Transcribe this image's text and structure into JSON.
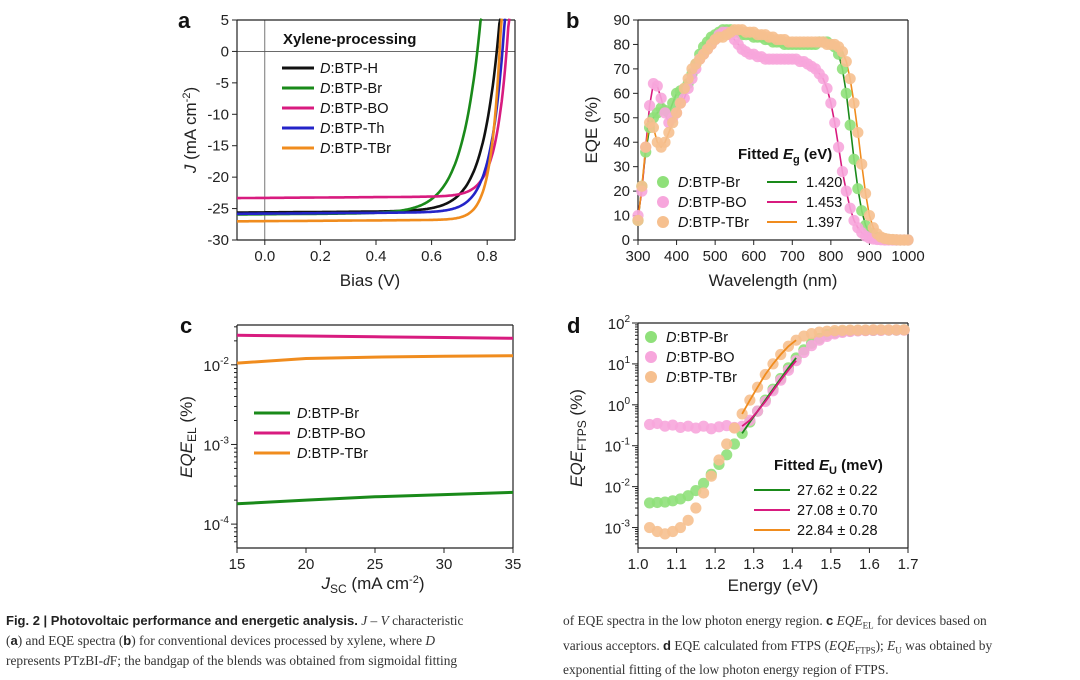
{
  "colors": {
    "black": "#111111",
    "green": "#1a8a1a",
    "magenta": "#d81b7f",
    "blue": "#2424c8",
    "orange": "#f08c1e",
    "green_marker": "#8fe07a",
    "magenta_marker": "#f7a6dc",
    "orange_marker": "#f6c08f"
  },
  "chart_data": [
    {
      "panel": "a",
      "type": "line",
      "title": "Xylene-processing",
      "xlabel": "Bias (V)",
      "ylabel": "J (mA cm-2)",
      "ylabel_parts": {
        "italic": "J",
        "rest": " (mA cm",
        "sup": "-2",
        "end": ")"
      },
      "xlim": [
        -0.1,
        0.9
      ],
      "ylim": [
        -30,
        5
      ],
      "xticks": [
        "0.0",
        "0.2",
        "0.4",
        "0.6",
        "0.8"
      ],
      "xtick_values": [
        0.0,
        0.2,
        0.4,
        0.6,
        0.8
      ],
      "yticks": [
        "5",
        "0",
        "-5",
        "-10",
        "-15",
        "-20",
        "-25",
        "-30"
      ],
      "ytick_values": [
        5,
        0,
        -5,
        -10,
        -15,
        -20,
        -25,
        -30
      ],
      "series": [
        {
          "name": "D:BTP-H",
          "prefix": "D",
          "suffix": ":BTP-H",
          "color": "#111111",
          "jsc": -25.6,
          "voc": 0.835,
          "n": 2.3
        },
        {
          "name": "D:BTP-Br",
          "prefix": "D",
          "suffix": ":BTP-Br",
          "color": "#1a8a1a",
          "jsc": -25.9,
          "voc": 0.765,
          "n": 2.6
        },
        {
          "name": "D:BTP-BO",
          "prefix": "D",
          "suffix": ":BTP-BO",
          "color": "#d81b7f",
          "jsc": -23.3,
          "voc": 0.87,
          "n": 1.6
        },
        {
          "name": "D:BTP-Th",
          "prefix": "D",
          "suffix": ":BTP-Th",
          "color": "#2424c8",
          "jsc": -25.8,
          "voc": 0.855,
          "n": 1.8
        },
        {
          "name": "D:BTP-TBr",
          "prefix": "D",
          "suffix": ":BTP-TBr",
          "color": "#f08c1e",
          "jsc": -27.0,
          "voc": 0.845,
          "n": 1.3
        }
      ]
    },
    {
      "panel": "b",
      "type": "scatter",
      "xlabel": "Wavelength (nm)",
      "ylabel": "EQE (%)",
      "xlim": [
        300,
        1000
      ],
      "ylim": [
        0,
        90
      ],
      "xticks": [
        "300",
        "400",
        "500",
        "600",
        "700",
        "800",
        "900",
        "1000"
      ],
      "xtick_values": [
        300,
        400,
        500,
        600,
        700,
        800,
        900,
        1000
      ],
      "yticks": [
        "0",
        "10",
        "20",
        "30",
        "40",
        "50",
        "60",
        "70",
        "80",
        "90"
      ],
      "ytick_values": [
        0,
        10,
        20,
        30,
        40,
        50,
        60,
        70,
        80,
        90
      ],
      "legend_title": "Fitted Eg (eV)",
      "legend_title_parts": {
        "pre": "Fitted ",
        "italic": "E",
        "sub": "g",
        "post": " (eV)"
      },
      "series": [
        {
          "name": "D:BTP-Br",
          "prefix": "D",
          "suffix": ":BTP-Br",
          "fit": "1.420",
          "color": "#1a8a1a",
          "marker": "#8fe07a",
          "x": [
            300,
            310,
            320,
            330,
            340,
            350,
            360,
            370,
            380,
            390,
            400,
            410,
            420,
            430,
            440,
            450,
            460,
            470,
            480,
            490,
            500,
            510,
            520,
            530,
            540,
            550,
            560,
            570,
            580,
            590,
            600,
            610,
            620,
            630,
            640,
            650,
            660,
            670,
            680,
            690,
            700,
            710,
            720,
            730,
            740,
            750,
            760,
            770,
            780,
            790,
            800,
            810,
            820,
            830,
            840,
            850,
            860,
            870,
            880,
            890,
            900,
            910,
            920,
            930,
            940,
            950,
            960,
            970,
            980,
            990,
            1000
          ],
          "y": [
            8,
            22,
            36,
            46,
            50,
            52,
            54,
            53,
            52,
            56,
            60,
            61,
            62,
            64,
            68,
            72,
            76,
            79,
            81,
            83,
            84,
            85,
            86,
            86,
            86,
            85,
            85,
            84,
            84,
            84,
            83,
            83,
            83,
            82,
            82,
            81,
            81,
            81,
            80,
            80,
            80,
            80,
            80,
            80,
            80,
            80,
            80,
            81,
            81,
            81,
            80,
            79,
            76,
            70,
            60,
            47,
            33,
            21,
            12,
            6,
            3,
            2,
            1,
            0.6,
            0.4,
            0.2,
            0.1,
            0,
            0,
            0,
            0
          ]
        },
        {
          "name": "D:BTP-BO",
          "prefix": "D",
          "suffix": ":BTP-BO",
          "fit": "1.453",
          "color": "#d81b7f",
          "marker": "#f7a6dc",
          "x": [
            300,
            310,
            320,
            330,
            340,
            350,
            360,
            370,
            380,
            390,
            400,
            410,
            420,
            430,
            440,
            450,
            460,
            470,
            480,
            490,
            500,
            510,
            520,
            530,
            540,
            550,
            560,
            570,
            580,
            590,
            600,
            610,
            620,
            630,
            640,
            650,
            660,
            670,
            680,
            690,
            700,
            710,
            720,
            730,
            740,
            750,
            760,
            770,
            780,
            790,
            800,
            810,
            820,
            830,
            840,
            850,
            860,
            870,
            880,
            890,
            900,
            910,
            920,
            930,
            940,
            950,
            960,
            970,
            980,
            990,
            1000
          ],
          "y": [
            10,
            20,
            38,
            55,
            64,
            63,
            58,
            52,
            48,
            50,
            52,
            56,
            58,
            62,
            66,
            70,
            74,
            76,
            78,
            80,
            82,
            84,
            85,
            85,
            84,
            82,
            80,
            78,
            77,
            76,
            76,
            75,
            75,
            74,
            74,
            74,
            74,
            74,
            74,
            74,
            74,
            74,
            73,
            73,
            72,
            71,
            70,
            68,
            66,
            62,
            56,
            48,
            38,
            28,
            20,
            13,
            8,
            5,
            3,
            1.6,
            0.8,
            0.4,
            0.2,
            0.1,
            0,
            0,
            0,
            0,
            0,
            0,
            0
          ]
        },
        {
          "name": "D:BTP-TBr",
          "prefix": "D",
          "suffix": ":BTP-TBr",
          "fit": "1.397",
          "color": "#f08c1e",
          "marker": "#f6c08f",
          "x": [
            300,
            310,
            320,
            330,
            340,
            350,
            360,
            370,
            380,
            390,
            400,
            410,
            420,
            430,
            440,
            450,
            460,
            470,
            480,
            490,
            500,
            510,
            520,
            530,
            540,
            550,
            560,
            570,
            580,
            590,
            600,
            610,
            620,
            630,
            640,
            650,
            660,
            670,
            680,
            690,
            700,
            710,
            720,
            730,
            740,
            750,
            760,
            770,
            780,
            790,
            800,
            810,
            820,
            830,
            840,
            850,
            860,
            870,
            880,
            890,
            900,
            910,
            920,
            930,
            940,
            950,
            960,
            970,
            980,
            990,
            1000
          ],
          "y": [
            8,
            22,
            38,
            48,
            46,
            40,
            38,
            40,
            44,
            48,
            52,
            56,
            62,
            66,
            70,
            72,
            74,
            76,
            78,
            80,
            82,
            83,
            83,
            84,
            85,
            86,
            86,
            86,
            85,
            85,
            85,
            84,
            84,
            84,
            83,
            83,
            82,
            82,
            82,
            81,
            81,
            81,
            81,
            81,
            81,
            81,
            81,
            81,
            81,
            80,
            80,
            80,
            79,
            77,
            73,
            66,
            56,
            44,
            31,
            19,
            10,
            5,
            2.5,
            1.2,
            0.6,
            0.3,
            0.2,
            0.1,
            0,
            0,
            0
          ]
        }
      ]
    },
    {
      "panel": "c",
      "type": "line",
      "xlabel": "JSC (mA cm-2)",
      "xlabel_parts": {
        "italic": "J",
        "sub": "SC",
        "rest": " (mA cm",
        "sup": "-2",
        "end": ")"
      },
      "ylabel": "EQEEL (%)",
      "ylabel_parts": {
        "italic": "EQE",
        "sub": "EL",
        "rest": " (%)"
      },
      "xlim": [
        15,
        35
      ],
      "ylim_log10": [
        -4.3,
        -1.5
      ],
      "xticks": [
        "15",
        "20",
        "25",
        "30",
        "35"
      ],
      "xtick_values": [
        15,
        20,
        25,
        30,
        35
      ],
      "ytick_labels": [
        {
          "base": "10",
          "exp": "-2",
          "value": 0.01
        },
        {
          "base": "10",
          "exp": "-3",
          "value": 0.001
        },
        {
          "base": "10",
          "exp": "-4",
          "value": 0.0001
        }
      ],
      "series": [
        {
          "name": "D:BTP-Br",
          "prefix": "D",
          "suffix": ":BTP-Br",
          "color": "#1a8a1a",
          "x": [
            15,
            20,
            25,
            30,
            35
          ],
          "y": [
            0.00018,
            0.0002,
            0.00022,
            0.000235,
            0.00025
          ]
        },
        {
          "name": "D:BTP-BO",
          "prefix": "D",
          "suffix": ":BTP-BO",
          "color": "#d81b7f",
          "x": [
            15,
            20,
            25,
            30,
            35
          ],
          "y": [
            0.0235,
            0.023,
            0.0225,
            0.022,
            0.0215
          ]
        },
        {
          "name": "D:BTP-TBr",
          "prefix": "D",
          "suffix": ":BTP-TBr",
          "color": "#f08c1e",
          "x": [
            15,
            20,
            25,
            30,
            35
          ],
          "y": [
            0.0105,
            0.012,
            0.0125,
            0.0128,
            0.013
          ]
        }
      ]
    },
    {
      "panel": "d",
      "type": "scatter",
      "xlabel": "Energy (eV)",
      "ylabel": "EQEFTPS (%)",
      "ylabel_parts": {
        "italic": "EQE",
        "sub": "FTPS",
        "rest": " (%)"
      },
      "xlim": [
        1.0,
        1.7
      ],
      "ylim_log10": [
        -3.5,
        2
      ],
      "xticks": [
        "1.0",
        "1.1",
        "1.2",
        "1.3",
        "1.4",
        "1.5",
        "1.6",
        "1.7"
      ],
      "xtick_values": [
        1.0,
        1.1,
        1.2,
        1.3,
        1.4,
        1.5,
        1.6,
        1.7
      ],
      "ytick_labels": [
        {
          "base": "10",
          "exp": "2",
          "value": 100
        },
        {
          "base": "10",
          "exp": "1",
          "value": 10
        },
        {
          "base": "10",
          "exp": "0",
          "value": 1
        },
        {
          "base": "10",
          "exp": "-1",
          "value": 0.1
        },
        {
          "base": "10",
          "exp": "-2",
          "value": 0.01
        },
        {
          "base": "10",
          "exp": "-3",
          "value": 0.001
        }
      ],
      "legend_title": "Fitted EU (meV)",
      "legend_title_parts": {
        "pre": "Fitted ",
        "italic": "E",
        "sub": "U",
        "post": " (meV)"
      },
      "series": [
        {
          "name": "D:BTP-Br",
          "prefix": "D",
          "suffix": ":BTP-Br",
          "fit": "27.62 ± 0.22",
          "color": "#1a8a1a",
          "marker": "#8fe07a",
          "x": [
            1.03,
            1.05,
            1.07,
            1.09,
            1.11,
            1.13,
            1.15,
            1.17,
            1.19,
            1.21,
            1.23,
            1.25,
            1.27,
            1.29,
            1.31,
            1.33,
            1.35,
            1.37,
            1.39,
            1.41,
            1.43,
            1.45,
            1.47,
            1.49,
            1.51,
            1.53,
            1.55,
            1.57,
            1.59,
            1.61,
            1.63,
            1.65,
            1.67,
            1.69
          ],
          "y": [
            0.004,
            0.0041,
            0.0042,
            0.0045,
            0.005,
            0.006,
            0.008,
            0.012,
            0.02,
            0.035,
            0.06,
            0.11,
            0.2,
            0.38,
            0.7,
            1.3,
            2.4,
            4.4,
            8,
            14,
            22,
            32,
            42,
            52,
            58,
            62,
            64,
            65,
            66,
            66,
            67,
            67,
            67,
            68
          ]
        },
        {
          "name": "D:BTP-BO",
          "prefix": "D",
          "suffix": ":BTP-BO",
          "fit": "27.08 ± 0.70",
          "color": "#d81b7f",
          "marker": "#f7a6dc",
          "x": [
            1.03,
            1.05,
            1.07,
            1.09,
            1.11,
            1.13,
            1.15,
            1.17,
            1.19,
            1.21,
            1.23,
            1.25,
            1.27,
            1.29,
            1.31,
            1.33,
            1.35,
            1.37,
            1.39,
            1.41,
            1.43,
            1.45,
            1.47,
            1.49,
            1.51,
            1.53,
            1.55,
            1.57,
            1.59,
            1.61,
            1.63,
            1.65,
            1.67,
            1.69
          ],
          "y": [
            0.33,
            0.35,
            0.3,
            0.32,
            0.28,
            0.3,
            0.27,
            0.3,
            0.26,
            0.29,
            0.31,
            0.28,
            0.3,
            0.42,
            0.7,
            1.2,
            2.2,
            4,
            7,
            12,
            19,
            28,
            38,
            47,
            54,
            59,
            62,
            64,
            65,
            66,
            66,
            67,
            67,
            67
          ]
        },
        {
          "name": "D:BTP-TBr",
          "prefix": "D",
          "suffix": ":BTP-TBr",
          "fit": "22.84 ± 0.28",
          "color": "#f08c1e",
          "marker": "#f6c08f",
          "x": [
            1.03,
            1.05,
            1.07,
            1.09,
            1.11,
            1.13,
            1.15,
            1.17,
            1.19,
            1.21,
            1.23,
            1.25,
            1.27,
            1.29,
            1.31,
            1.33,
            1.35,
            1.37,
            1.39,
            1.41,
            1.43,
            1.45,
            1.47,
            1.49,
            1.51,
            1.53,
            1.55,
            1.57,
            1.59,
            1.61,
            1.63,
            1.65,
            1.67,
            1.69
          ],
          "y": [
            0.001,
            0.0008,
            0.0007,
            0.0008,
            0.001,
            0.0015,
            0.003,
            0.007,
            0.018,
            0.045,
            0.11,
            0.27,
            0.6,
            1.3,
            2.7,
            5.5,
            10,
            17,
            27,
            38,
            48,
            55,
            60,
            63,
            65,
            66,
            67,
            67,
            67,
            68,
            68,
            68,
            68,
            68
          ]
        }
      ]
    }
  ],
  "caption": {
    "fig_label": "Fig. 2 | Photovoltaic performance and energetic analysis.",
    "left_lines": [
      [
        "J",
        " – ",
        "V",
        " characteristic"
      ],
      [
        "(",
        "a",
        ") and EQE spectra (",
        "b",
        ") for conventional devices processed by xylene, where ",
        "D"
      ],
      [
        "represents PTzBI-",
        "d",
        "F; the bandgap of the blends was obtained from sigmoidal fitting"
      ]
    ],
    "right_lines": [
      [
        "of EQE spectra in the low photon energy region. ",
        "c",
        " ",
        "EQE",
        "EL",
        " for devices based on"
      ],
      [
        "various acceptors. ",
        "d",
        " EQE calculated from FTPS (",
        "EQE",
        "FTPS",
        "); ",
        "E",
        "U",
        " was obtained by"
      ],
      [
        "exponential fitting of the low photon energy region of FTPS."
      ]
    ]
  }
}
